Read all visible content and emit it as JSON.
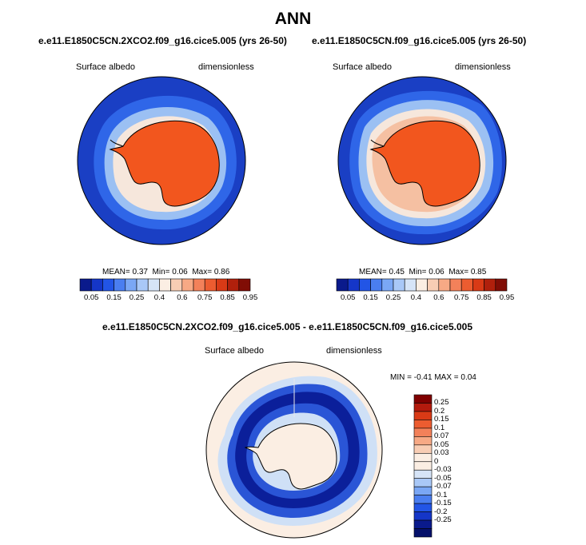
{
  "figure": {
    "title": "ANN"
  },
  "panels": [
    {
      "case": "e.e11.E1850C5CN.2XCO2.f09_g16.cice5.005 (yrs 26-50)",
      "variable": "Surface albedo",
      "units": "dimensionless",
      "stats": {
        "mean_label": "MEAN=",
        "mean": "0.37",
        "min_label": "Min=",
        "min": "0.06",
        "max_label": "Max=",
        "max": "0.86"
      }
    },
    {
      "case": "e.e11.E1850C5CN.f09_g16.cice5.005 (yrs 26-50)",
      "variable": "Surface albedo",
      "units": "dimensionless",
      "stats": {
        "mean_label": "MEAN=",
        "mean": "0.45",
        "min_label": "Min=",
        "min": "0.06",
        "max_label": "Max=",
        "max": "0.85"
      }
    }
  ],
  "diff_panel": {
    "title": "e.e11.E1850C5CN.2XCO2.f09_g16.cice5.005 - e.e11.E1850C5CN.f09_g16.cice5.005",
    "variable": "Surface albedo",
    "units": "dimensionless",
    "stats": {
      "min_label": "MIN =",
      "min": "-0.41",
      "max_label": "MAX =",
      "max": "0.04"
    }
  },
  "colorbar_abs": {
    "colors": [
      "#0a1a8c",
      "#1536c8",
      "#2255e6",
      "#4a7ef0",
      "#7aa7f5",
      "#a9c8f7",
      "#d6e4f7",
      "#fbeee3",
      "#f8cdb4",
      "#f7a985",
      "#f3815a",
      "#ec5c30",
      "#d93a16",
      "#b0200c",
      "#800d05"
    ],
    "labels": [
      "0.05",
      "0.15",
      "0.25",
      "0.4",
      "0.6",
      "0.75",
      "0.85",
      "0.95"
    ],
    "label_after_box": [
      0,
      2,
      4,
      6,
      8,
      10,
      12,
      14
    ]
  },
  "colorbar_diff": {
    "colors": [
      "#800000",
      "#b31a0d",
      "#d93a16",
      "#ec5c30",
      "#f3815a",
      "#f7a985",
      "#f8cdb4",
      "#fbeee3",
      "#fbeee3",
      "#d6e4f7",
      "#a9c8f7",
      "#7aa7f5",
      "#4a7ef0",
      "#2255e6",
      "#1536c8",
      "#0a1a8c",
      "#05106a"
    ],
    "labels": [
      "0.25",
      "0.2",
      "0.15",
      "0.1",
      "0.07",
      "0.05",
      "0.03",
      "0",
      "-0.03",
      "-0.05",
      "-0.07",
      "-0.1",
      "-0.15",
      "-0.2",
      "-0.25"
    ]
  },
  "map_colors": {
    "ocean_open": "#1a3fc4",
    "ocean_mid": "#2f66e8",
    "ice_edge": "#9bc0f3",
    "ice_pale": "#f6e7dc",
    "ice_peach": "#f5c0a2",
    "continent": "#f2561e",
    "diff_neutral": "#fbeee3",
    "diff_pale_blue": "#cfe0f6",
    "diff_blue": "#2a55d6",
    "diff_dark": "#0b1f9a"
  }
}
